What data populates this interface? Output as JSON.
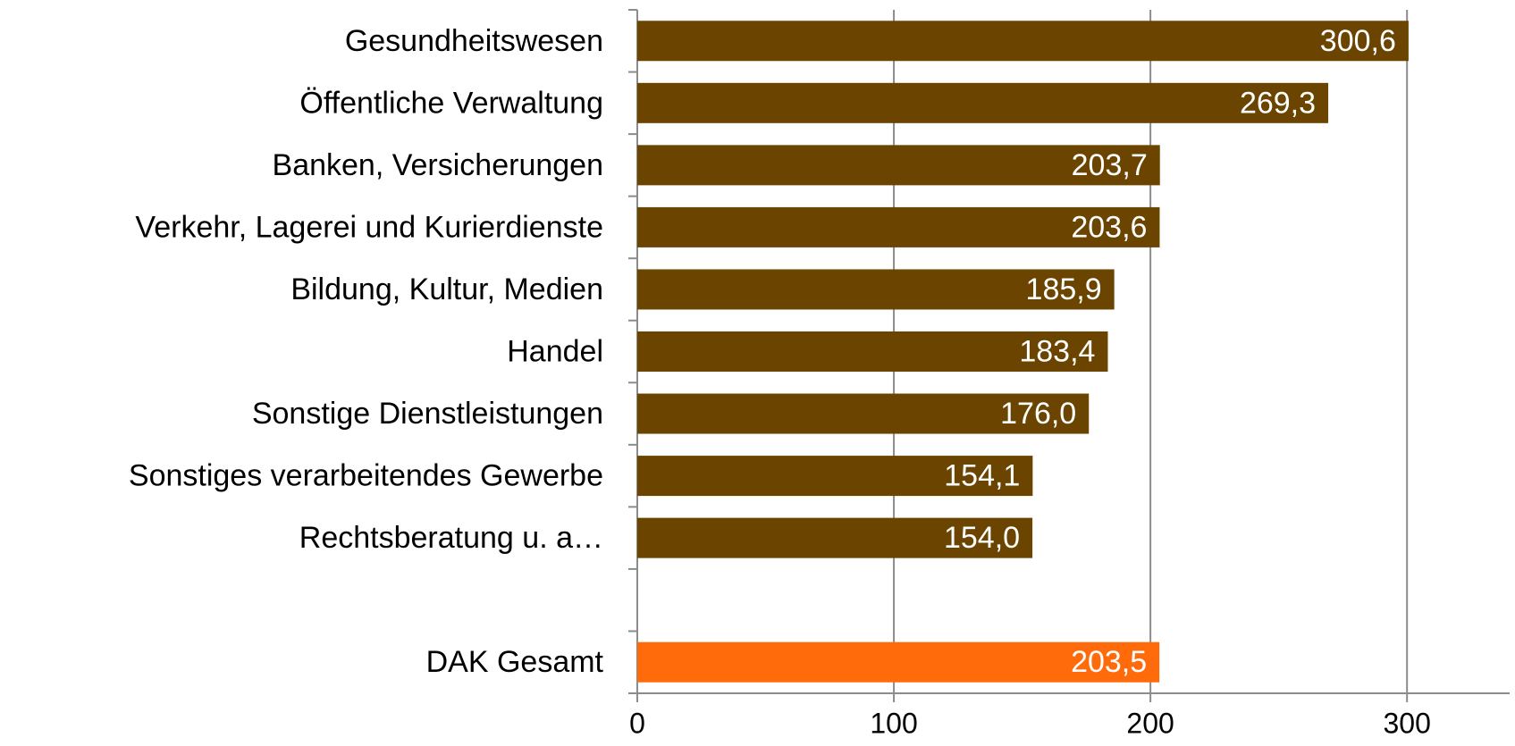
{
  "chart_data": {
    "type": "bar",
    "orientation": "horizontal",
    "categories": [
      "Gesundheitswesen",
      "Öffentliche Verwaltung",
      "Banken, Versicherungen",
      "Verkehr, Lagerei und Kurierdienste",
      "Bildung, Kultur, Medien",
      "Handel",
      "Sonstige Dienstleistungen",
      "Sonstiges verarbeitendes Gewerbe",
      "Rechtsberatung u. a…",
      null,
      "DAK Gesamt"
    ],
    "values": [
      300.6,
      269.3,
      203.7,
      203.6,
      185.9,
      183.4,
      176.0,
      154.1,
      154.0,
      null,
      203.5
    ],
    "value_labels": [
      "300,6",
      "269,3",
      "203,7",
      "203,6",
      "185,9",
      "183,4",
      "176,0",
      "154,1",
      "154,0",
      null,
      "203,5"
    ],
    "colors": [
      "#6b4400",
      "#6b4400",
      "#6b4400",
      "#6b4400",
      "#6b4400",
      "#6b4400",
      "#6b4400",
      "#6b4400",
      "#6b4400",
      null,
      "#ff6a0a"
    ],
    "xlim": [
      0,
      340
    ],
    "xticks": [
      0,
      100,
      200,
      300
    ],
    "grid": true
  }
}
